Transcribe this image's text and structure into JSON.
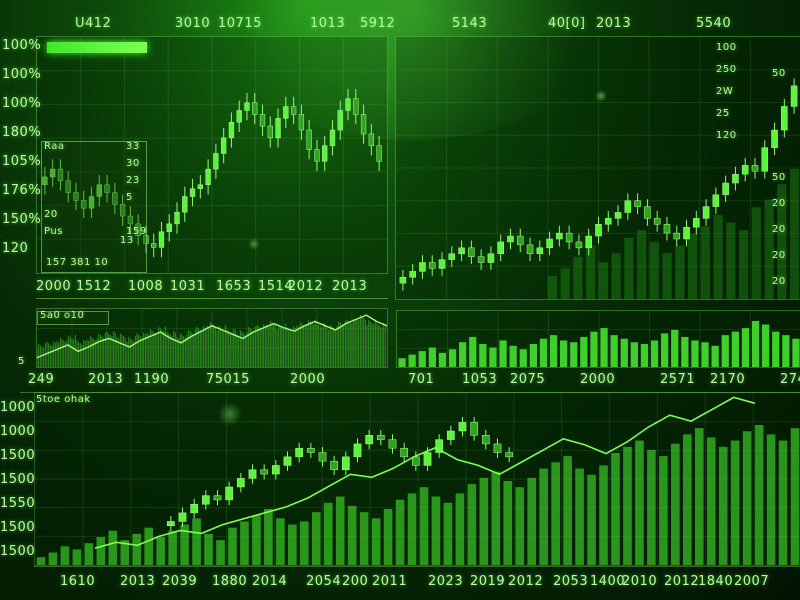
{
  "header_labels": [
    "U412",
    "3010",
    "10715",
    "1013",
    "5912",
    "5143",
    "40[0]",
    "2013",
    "5540"
  ],
  "top_left": {
    "y_ticks": [
      "100%",
      "100%",
      "100%",
      "180%",
      "105%",
      "176%",
      "150%",
      "120"
    ],
    "x_ticks": [
      "2000",
      "1512",
      "1008",
      "1031",
      "1653",
      "1514",
      "2012",
      "2013"
    ],
    "inset": {
      "rows": [
        [
          "Raa",
          "33"
        ],
        [
          "",
          "30"
        ],
        [
          "",
          "23"
        ],
        [
          "",
          "5"
        ],
        [
          "20",
          ""
        ],
        [
          "Pus",
          "159",
          "13"
        ]
      ],
      "footer": "157 381 10"
    }
  },
  "top_right": {
    "y_ticks": [
      "100",
      "250",
      "2W",
      "25",
      "120",
      "",
      "",
      ""
    ],
    "y_ticks_right": [
      "",
      "50",
      "",
      "",
      "",
      "50",
      "20",
      "20",
      "20",
      "20"
    ]
  },
  "mid_left": {
    "x_ticks": [
      "249",
      "2013",
      "1190",
      "75015",
      "2000"
    ],
    "box_label": "5a0 o10",
    "tag": "5"
  },
  "mid_right": {
    "x_ticks": [
      "701",
      "1053",
      "2075",
      "2000",
      "2571",
      "2170",
      "2740"
    ]
  },
  "bottom": {
    "title": "5toe ohak",
    "y_ticks": [
      "1000",
      "1000",
      "1500",
      "1500",
      "1550",
      "1500",
      "1500"
    ],
    "x_ticks": [
      "1610",
      "2013",
      "2039",
      "1880",
      "2014",
      "2054",
      "200",
      "2011",
      "2023",
      "2019",
      "2012",
      "2053",
      "1400",
      "2010",
      "2012",
      "1840",
      "2007"
    ]
  },
  "chart_data": [
    {
      "type": "candlestick",
      "values": [
        102,
        104,
        101,
        98,
        96,
        94,
        97,
        100,
        98,
        95,
        92,
        90,
        87,
        85,
        84,
        88,
        90,
        93,
        97,
        99,
        100,
        104,
        108,
        112,
        116,
        119,
        121,
        118,
        115,
        112,
        117,
        120,
        118,
        114,
        109,
        106,
        110,
        114,
        119,
        122,
        118,
        113,
        110,
        106
      ]
    },
    {
      "type": "candlestick",
      "values": [
        60,
        62,
        65,
        63,
        66,
        68,
        70,
        67,
        65,
        68,
        72,
        74,
        71,
        68,
        70,
        73,
        75,
        72,
        70,
        74,
        78,
        80,
        82,
        86,
        84,
        80,
        78,
        75,
        73,
        77,
        80,
        84,
        88,
        92,
        95,
        98,
        96,
        104,
        110,
        118,
        125
      ]
    },
    {
      "type": "line",
      "values": [
        30,
        34,
        38,
        42,
        36,
        40,
        45,
        48,
        44,
        40,
        46,
        50,
        54,
        48,
        44,
        50,
        55,
        60,
        56,
        52,
        48,
        54,
        58,
        62,
        58,
        55,
        60,
        64,
        60,
        56,
        62,
        66,
        70,
        64,
        60
      ]
    },
    {
      "type": "bar",
      "values": [
        10,
        14,
        18,
        22,
        16,
        20,
        28,
        34,
        26,
        22,
        30,
        24,
        20,
        26,
        32,
        36,
        30,
        28,
        34,
        40,
        44,
        36,
        32,
        28,
        26,
        30,
        38,
        42,
        34,
        30,
        28,
        24,
        36,
        40,
        44,
        52,
        48,
        40,
        36,
        32
      ]
    },
    {
      "type": "bar",
      "values": [
        5,
        8,
        12,
        10,
        14,
        18,
        22,
        16,
        20,
        24,
        18,
        22,
        26,
        30,
        20,
        16,
        24,
        28,
        32,
        36,
        30,
        26,
        28,
        34,
        40,
        44,
        38,
        34,
        30,
        36,
        42,
        46,
        50,
        44,
        40,
        46,
        52,
        56,
        60,
        54,
        50,
        56,
        62,
        66,
        70,
        62,
        58,
        64,
        72,
        76,
        80,
        74,
        70,
        78,
        84,
        88,
        82,
        76,
        80,
        86,
        90,
        84,
        80,
        88
      ]
    }
  ]
}
